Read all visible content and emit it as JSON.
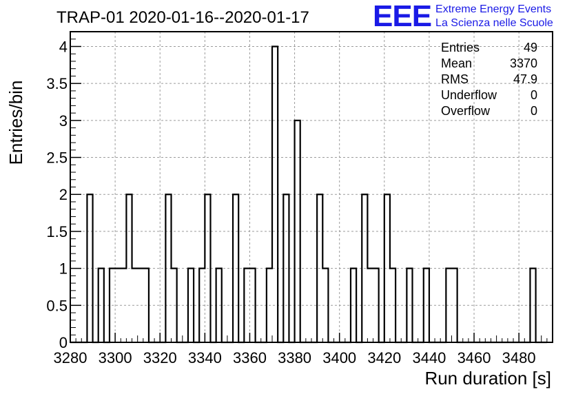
{
  "chart_data": {
    "type": "histogram",
    "title": "TRAP-01 2020-01-16--2020-01-17",
    "xlabel": "Run duration [s]",
    "ylabel": "Entries/bin",
    "xlim": [
      3280,
      3495
    ],
    "ylim": [
      0,
      4.2
    ],
    "bin_width": 2.5,
    "x_ticks": [
      3280,
      3300,
      3320,
      3340,
      3360,
      3380,
      3400,
      3420,
      3440,
      3460,
      3480
    ],
    "y_ticks": [
      0,
      0.5,
      1,
      1.5,
      2,
      2.5,
      3,
      3.5,
      4
    ],
    "y_tick_labels": [
      "0",
      "0.5",
      "1",
      "1.5",
      "2",
      "2.5",
      "3",
      "3.5",
      "4"
    ],
    "grid": true,
    "bins": [
      {
        "x": 3287.5,
        "value": 2
      },
      {
        "x": 3292.5,
        "value": 1
      },
      {
        "x": 3297.5,
        "value": 1
      },
      {
        "x": 3300.0,
        "value": 1
      },
      {
        "x": 3302.5,
        "value": 1
      },
      {
        "x": 3305.0,
        "value": 2
      },
      {
        "x": 3307.5,
        "value": 1
      },
      {
        "x": 3310.0,
        "value": 1
      },
      {
        "x": 3312.5,
        "value": 1
      },
      {
        "x": 3322.5,
        "value": 2
      },
      {
        "x": 3325.0,
        "value": 1
      },
      {
        "x": 3332.5,
        "value": 1
      },
      {
        "x": 3337.5,
        "value": 1
      },
      {
        "x": 3340.0,
        "value": 2
      },
      {
        "x": 3345.0,
        "value": 1
      },
      {
        "x": 3352.5,
        "value": 2
      },
      {
        "x": 3357.5,
        "value": 1
      },
      {
        "x": 3360.0,
        "value": 1
      },
      {
        "x": 3367.5,
        "value": 1
      },
      {
        "x": 3370.0,
        "value": 4
      },
      {
        "x": 3375.0,
        "value": 2
      },
      {
        "x": 3380.0,
        "value": 3
      },
      {
        "x": 3390.0,
        "value": 2
      },
      {
        "x": 3392.5,
        "value": 1
      },
      {
        "x": 3405.0,
        "value": 1
      },
      {
        "x": 3410.0,
        "value": 2
      },
      {
        "x": 3412.5,
        "value": 1
      },
      {
        "x": 3415.0,
        "value": 1
      },
      {
        "x": 3420.0,
        "value": 2
      },
      {
        "x": 3422.5,
        "value": 1
      },
      {
        "x": 3430.0,
        "value": 1
      },
      {
        "x": 3437.5,
        "value": 1
      },
      {
        "x": 3447.5,
        "value": 1
      },
      {
        "x": 3450.0,
        "value": 1
      },
      {
        "x": 3485.0,
        "value": 1
      }
    ]
  },
  "stats": {
    "entries_label": "Entries",
    "entries_value": "49",
    "mean_label": "Mean",
    "mean_value": "3370",
    "rms_label": "RMS",
    "rms_value": "47.9",
    "underflow_label": "Underflow",
    "underflow_value": "0",
    "overflow_label": "Overflow",
    "overflow_value": "0"
  },
  "logo": {
    "mark": "EEE",
    "line1": "Extreme Energy Events",
    "line2": "La Scienza nelle Scuole",
    "color": "#1a1ae6"
  }
}
